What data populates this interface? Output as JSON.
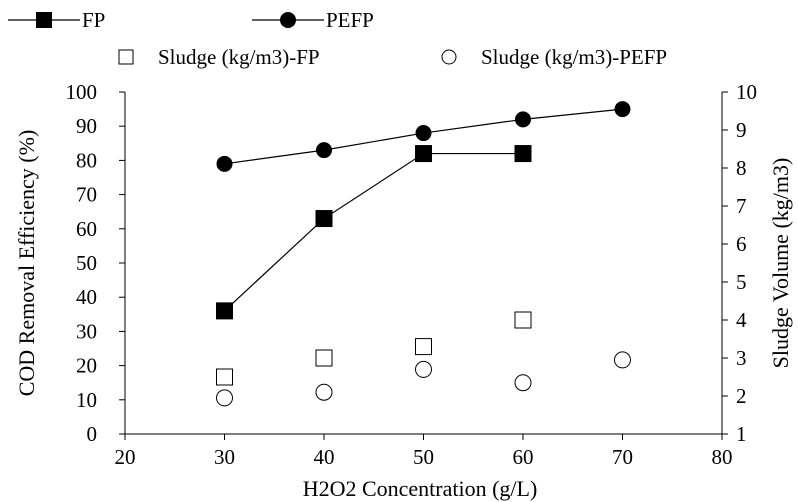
{
  "chart_data": {
    "type": "line",
    "xlabel": "H2O2 Concentration (g/L)",
    "ylabel": "COD Removal Efficiency (%)",
    "y2label": "Sludge Volume (kg/m3)",
    "xlim": [
      20,
      80
    ],
    "ylim": [
      0,
      100
    ],
    "y2lim": [
      1,
      10
    ],
    "x_ticks": [
      "20",
      "30",
      "40",
      "50",
      "60",
      "70",
      "80"
    ],
    "y_ticks": [
      "0",
      "10",
      "20",
      "30",
      "40",
      "50",
      "60",
      "70",
      "80",
      "90",
      "100"
    ],
    "y2_ticks": [
      "1",
      "2",
      "3",
      "4",
      "5",
      "6",
      "7",
      "8",
      "9",
      "10"
    ],
    "grid": false,
    "legend_position": "top",
    "series": [
      {
        "name": "FP",
        "axis": "left",
        "style": "line",
        "marker": "filled-square",
        "x": [
          30,
          40,
          50,
          60
        ],
        "y": [
          36,
          63,
          82,
          82
        ]
      },
      {
        "name": "PEFP",
        "axis": "left",
        "style": "line",
        "marker": "filled-circle",
        "x": [
          30,
          40,
          50,
          60,
          70
        ],
        "y": [
          79,
          83,
          88,
          92,
          95
        ]
      },
      {
        "name": "Sludge (kg/m3)-FP",
        "axis": "right",
        "style": "scatter",
        "marker": "hollow-square",
        "x": [
          30,
          40,
          50,
          60
        ],
        "y": [
          2.5,
          3.0,
          3.3,
          4.0
        ]
      },
      {
        "name": "Sludge (kg/m3)-PEFP",
        "axis": "right",
        "style": "scatter",
        "marker": "hollow-circle",
        "x": [
          30,
          40,
          50,
          60,
          70
        ],
        "y": [
          1.95,
          2.1,
          2.7,
          2.35,
          2.95
        ]
      }
    ]
  },
  "colors": {
    "line": "#000000",
    "marker_fill": "#000000",
    "hollow_fill": "#ffffff"
  }
}
